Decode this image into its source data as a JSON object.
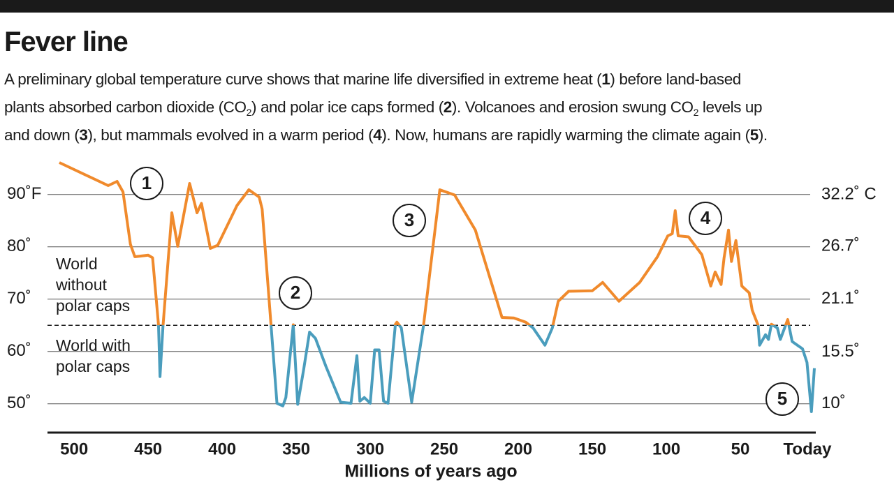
{
  "chart_data": {
    "type": "line",
    "title": "Fever line",
    "subtitle": [
      "A preliminary global temperature curve shows that marine life diversified in extreme heat (",
      "1",
      ") before land-based",
      "plants absorbed carbon dioxide (CO",
      "2",
      ") and polar ice caps formed (",
      "2",
      "). Volcanoes and erosion swung CO",
      "2",
      " levels up",
      "and down (",
      "3",
      "), but mammals evolved in a warm period (",
      "4",
      "). Now, humans are rapidly warming the climate again (",
      "5",
      ")."
    ],
    "xlabel": "Millions of years ago",
    "x": [
      510,
      477,
      471,
      467,
      462,
      459,
      450,
      447,
      443,
      442,
      440,
      434,
      430,
      422,
      417,
      414,
      408,
      403,
      390,
      382,
      375,
      373,
      367,
      363,
      359,
      357,
      352,
      349,
      345,
      341,
      337,
      330,
      320,
      313,
      309,
      307,
      304,
      300,
      297,
      294,
      291,
      288,
      283,
      282,
      279,
      272,
      264,
      253,
      243,
      229,
      211,
      203,
      195,
      190,
      182,
      177,
      173,
      166,
      150,
      143,
      132,
      118,
      106,
      99,
      96,
      94,
      92,
      85,
      76,
      70,
      67,
      63,
      61,
      58,
      56,
      53,
      49,
      44,
      42,
      38,
      37,
      33,
      31,
      29,
      25,
      23,
      18,
      15,
      8,
      5,
      2,
      0
    ],
    "values": [
      96.1,
      91.7,
      92.5,
      90.5,
      80.5,
      78.1,
      78.4,
      77.9,
      65,
      55.2,
      64.8,
      86.5,
      80.1,
      92.1,
      86.5,
      88.3,
      79.7,
      80.3,
      87.9,
      90.9,
      89.5,
      87.2,
      65,
      50.1,
      49.6,
      51.2,
      65.1,
      49.9,
      56.5,
      63.7,
      62.5,
      57.2,
      50.3,
      50.1,
      59.2,
      50.5,
      51.2,
      50.1,
      60.3,
      60.3,
      50.5,
      50.1,
      65.2,
      65.6,
      64.5,
      50.3,
      65,
      90.9,
      89.9,
      83.2,
      66.5,
      66.4,
      65.6,
      64.5,
      61.2,
      64.5,
      69.6,
      71.5,
      71.6,
      73.2,
      69.6,
      73.2,
      78.1,
      82.1,
      82.5,
      86.9,
      82.1,
      81.9,
      78.5,
      72.5,
      75.2,
      72.8,
      77.9,
      83.2,
      77.2,
      81.2,
      72.5,
      71.2,
      67.9,
      65,
      61.2,
      63.2,
      62.3,
      65.2,
      64.5,
      62.3,
      66.1,
      61.9,
      60.5,
      57.9,
      48.5,
      56.8
    ],
    "color": "#f08a2c",
    "color_below": "#4a9dbd",
    "threshold": 65,
    "xlim": [
      518,
      0
    ],
    "xticks": [
      500,
      450,
      400,
      350,
      300,
      250,
      200,
      150,
      100,
      50,
      {
        "value": 0,
        "label": "Today"
      }
    ],
    "ylim": [
      44.5,
      96.5
    ],
    "yticks": [
      {
        "value": 90,
        "label": "90˚F"
      },
      {
        "value": 80,
        "label": "80˚"
      },
      {
        "value": 70,
        "label": "70˚"
      },
      {
        "value": 60,
        "label": "60˚"
      },
      {
        "value": 50,
        "label": "50˚"
      }
    ],
    "y2lim": [
      6.94,
      35.83
    ],
    "y2ticks": [
      {
        "value": 32.2,
        "label": "32.2˚ C"
      },
      {
        "value": 26.7,
        "label": "26.7˚"
      },
      {
        "value": 21.1,
        "label": "21.1˚"
      },
      {
        "value": 15.5,
        "label": "15.5˚"
      },
      {
        "value": 10,
        "label": "10˚"
      }
    ],
    "grid": true,
    "annotations": [
      "1",
      "2",
      "3",
      "4",
      "5"
    ],
    "above_label": [
      "World",
      "without",
      "polar caps"
    ],
    "below_label": [
      "World with",
      "polar caps"
    ]
  }
}
